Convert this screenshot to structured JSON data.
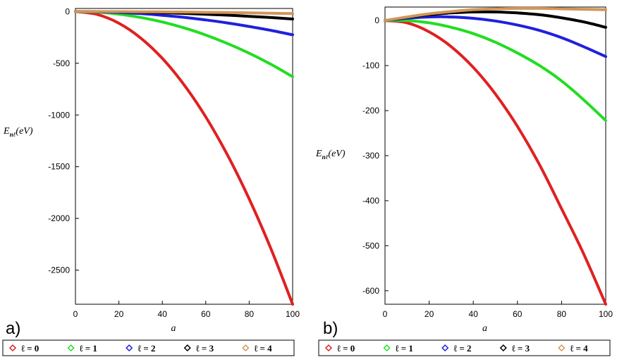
{
  "chart_data": [
    {
      "type": "line",
      "panel_label": "a)",
      "xlabel": "a",
      "ylabel_main": "E",
      "ylabel_sub": "nℓ",
      "ylabel_unit": "(eV)",
      "xlim": [
        0,
        100
      ],
      "ylim": [
        -2830,
        30
      ],
      "xticks": [
        0,
        20,
        40,
        60,
        80,
        100
      ],
      "yticks": [
        0,
        -500,
        -1000,
        -1500,
        -2000,
        -2500
      ],
      "grid": false,
      "legend_position": "bottom",
      "series": [
        {
          "name": "ℓ = 0",
          "color": "#e02020",
          "x": [
            0,
            10,
            20,
            30,
            40,
            50,
            60,
            70,
            80,
            90,
            100
          ],
          "y": [
            0,
            -28,
            -113,
            -255,
            -453,
            -708,
            -1019,
            -1387,
            -1812,
            -2293,
            -2830
          ]
        },
        {
          "name": "ℓ = 1",
          "color": "#22dd22",
          "x": [
            0,
            10,
            20,
            30,
            40,
            50,
            60,
            70,
            80,
            90,
            100
          ],
          "y": [
            0,
            -6,
            -25,
            -57,
            -101,
            -158,
            -227,
            -309,
            -403,
            -510,
            -630
          ]
        },
        {
          "name": "ℓ = 2",
          "color": "#2020dd",
          "x": [
            0,
            10,
            20,
            30,
            40,
            50,
            60,
            70,
            80,
            90,
            100
          ],
          "y": [
            0,
            -2,
            -9,
            -20,
            -36,
            -56,
            -81,
            -110,
            -144,
            -182,
            -225
          ]
        },
        {
          "name": "ℓ = 3",
          "color": "#000000",
          "x": [
            0,
            10,
            20,
            30,
            40,
            50,
            60,
            70,
            80,
            90,
            100
          ],
          "y": [
            0,
            -0.7,
            -3,
            -6.5,
            -11.5,
            -18,
            -26,
            -35,
            -46,
            -58,
            -72
          ]
        },
        {
          "name": "ℓ = 4",
          "color": "#d2955a",
          "x": [
            0,
            10,
            20,
            30,
            40,
            50,
            60,
            70,
            80,
            90,
            100
          ],
          "y": [
            0,
            -0.2,
            -0.8,
            -1.8,
            -3.2,
            -5,
            -7.2,
            -9.8,
            -12.8,
            -16.2,
            -20
          ]
        }
      ]
    },
    {
      "type": "line",
      "panel_label": "b)",
      "xlabel": "a",
      "ylabel_main": "E",
      "ylabel_sub": "nℓ",
      "ylabel_unit": "(eV)",
      "xlim": [
        0,
        100
      ],
      "ylim": [
        -630,
        30
      ],
      "xticks": [
        0,
        20,
        40,
        60,
        80,
        100
      ],
      "yticks": [
        0,
        -100,
        -200,
        -300,
        -400,
        -500,
        -600
      ],
      "grid": false,
      "legend_position": "bottom",
      "series": [
        {
          "name": "ℓ = 0",
          "color": "#e02020",
          "x": [
            0,
            10,
            20,
            30,
            40,
            50,
            60,
            70,
            80,
            90,
            100
          ],
          "y": [
            0,
            -5,
            -25,
            -58,
            -104,
            -163,
            -235,
            -320,
            -418,
            -518,
            -630
          ]
        },
        {
          "name": "ℓ = 1",
          "color": "#22dd22",
          "x": [
            0,
            10,
            20,
            30,
            40,
            50,
            60,
            70,
            80,
            90,
            100
          ],
          "y": [
            0,
            0,
            -5,
            -15,
            -29,
            -48,
            -72,
            -100,
            -134,
            -176,
            -222
          ]
        },
        {
          "name": "ℓ = 2",
          "color": "#2020dd",
          "x": [
            0,
            10,
            20,
            30,
            40,
            50,
            60,
            70,
            80,
            90,
            100
          ],
          "y": [
            0,
            5,
            8,
            8,
            5,
            -1,
            -10,
            -22,
            -38,
            -58,
            -80
          ]
        },
        {
          "name": "ℓ = 3",
          "color": "#000000",
          "x": [
            0,
            10,
            20,
            30,
            40,
            50,
            60,
            70,
            80,
            90,
            100
          ],
          "y": [
            0,
            7,
            13,
            17,
            19,
            19,
            17,
            13,
            6,
            -3,
            -15
          ]
        },
        {
          "name": "ℓ = 4",
          "color": "#d2955a",
          "x": [
            0,
            10,
            20,
            30,
            40,
            50,
            60,
            70,
            80,
            90,
            100
          ],
          "y": [
            0,
            8,
            15,
            20,
            24,
            26,
            27,
            27,
            26,
            25,
            24
          ]
        }
      ]
    }
  ]
}
